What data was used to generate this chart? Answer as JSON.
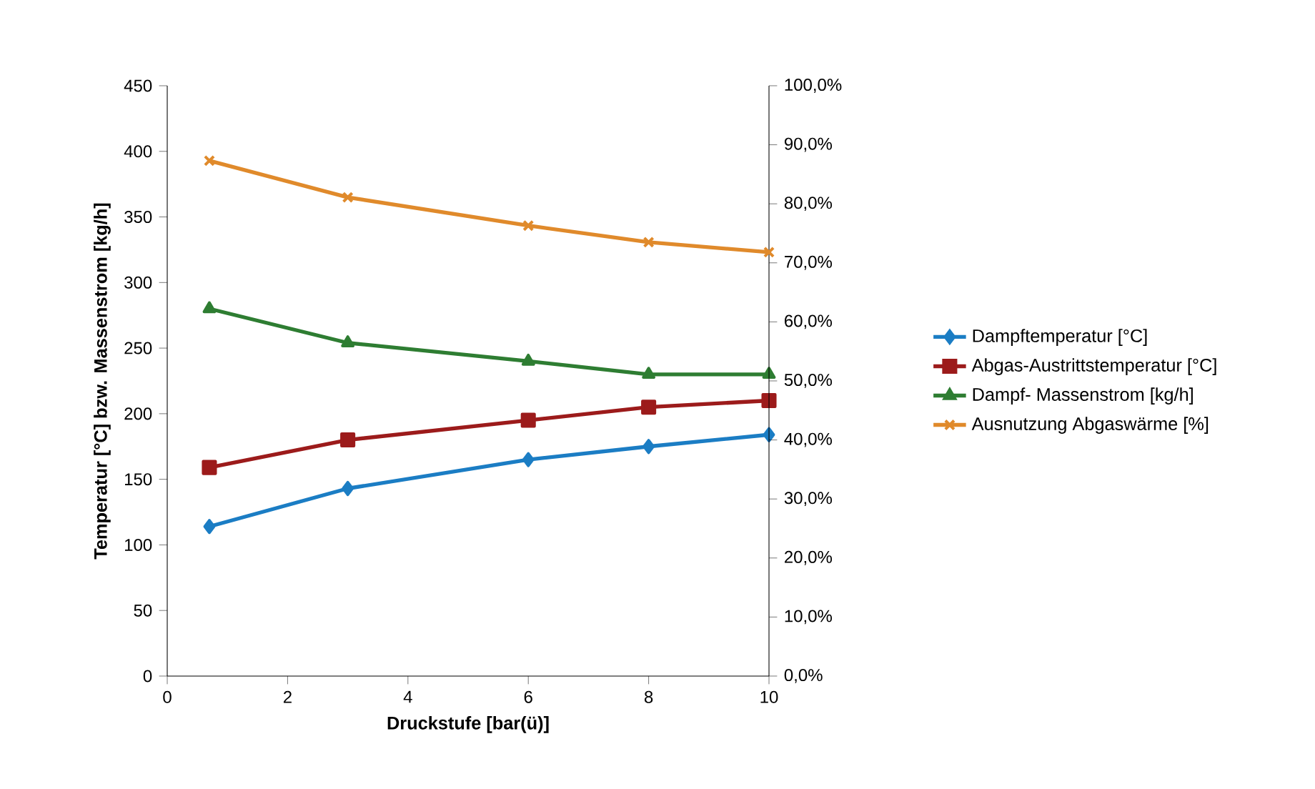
{
  "chart_data": {
    "type": "line",
    "xlabel": "Druckstufe [bar(ü)]",
    "ylabel": "Temperatur [°C] bzw. Massenstrom [kg/h]",
    "x": [
      0.7,
      3,
      6,
      8,
      10
    ],
    "xlim": [
      0,
      10
    ],
    "xticks": [
      0,
      2,
      4,
      6,
      8,
      10
    ],
    "ylim": [
      0,
      450
    ],
    "yticks": [
      0,
      50,
      100,
      150,
      200,
      250,
      300,
      350,
      400,
      450
    ],
    "y2lim": [
      0,
      100
    ],
    "y2ticks": [
      {
        "value": 0,
        "label": "0,0%"
      },
      {
        "value": 10,
        "label": "10,0%"
      },
      {
        "value": 20,
        "label": "20,0%"
      },
      {
        "value": 30,
        "label": "30,0%"
      },
      {
        "value": 40,
        "label": "40,0%"
      },
      {
        "value": 50,
        "label": "50,0%"
      },
      {
        "value": 60,
        "label": "60,0%"
      },
      {
        "value": 70,
        "label": "70,0%"
      },
      {
        "value": 80,
        "label": "80,0%"
      },
      {
        "value": 90,
        "label": "90,0%"
      },
      {
        "value": 100,
        "label": "100,0%"
      }
    ],
    "legend": "right",
    "grid": false,
    "line_style": "solid",
    "series": [
      {
        "name": "Dampftemperatur [°C]",
        "color": "#1b7dc4",
        "marker": "diamond",
        "values": [
          114,
          143,
          165,
          175,
          184
        ]
      },
      {
        "name": "Abgas-Austrittstemperatur [°C]",
        "color": "#9c1b1b",
        "marker": "square",
        "values": [
          159,
          180,
          195,
          205,
          210
        ]
      },
      {
        "name": "Dampf- Massenstrom [kg/h]",
        "color": "#2e7d32",
        "marker": "triangle",
        "values": [
          280,
          254,
          240,
          230,
          230
        ]
      },
      {
        "name": "Ausnutzung Abgaswärme [%]",
        "color": "#e08a2b",
        "marker": "cross",
        "axis": "y2",
        "values": [
          87.3,
          81.1,
          76.3,
          73.5,
          71.8
        ]
      }
    ]
  }
}
